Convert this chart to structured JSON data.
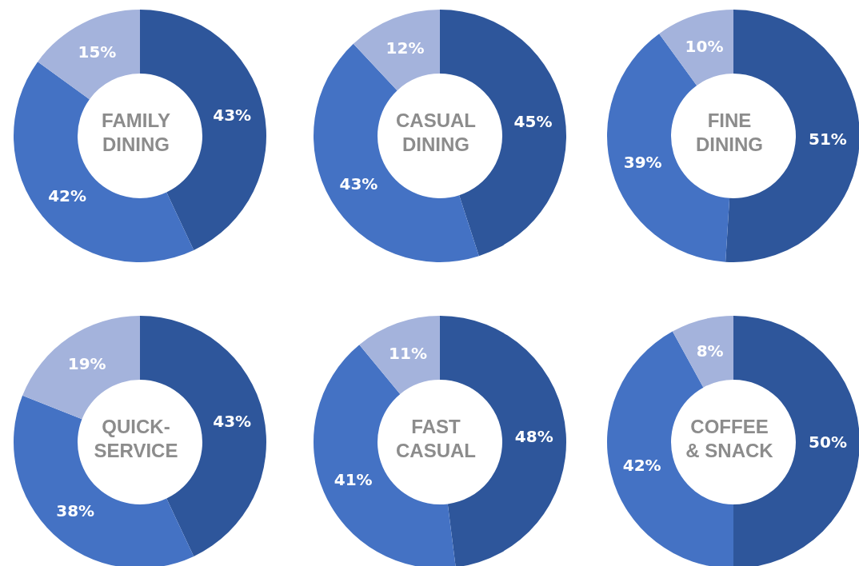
{
  "chart_data": [
    {
      "type": "donut",
      "title": "FAMILY\nDINING",
      "categories": [
        null,
        null,
        null
      ],
      "values": [
        43,
        42,
        15
      ],
      "value_labels": [
        "43%",
        "42%",
        "15%"
      ],
      "colors": [
        "#2e569b",
        "#4472c4",
        "#a4b3dc"
      ]
    },
    {
      "type": "donut",
      "title": "CASUAL\nDINING",
      "categories": [
        null,
        null,
        null
      ],
      "values": [
        45,
        43,
        12
      ],
      "value_labels": [
        "45%",
        "43%",
        "12%"
      ],
      "colors": [
        "#2e569b",
        "#4472c4",
        "#a4b3dc"
      ]
    },
    {
      "type": "donut",
      "title": "FINE\nDINING",
      "categories": [
        null,
        null,
        null
      ],
      "values": [
        51,
        39,
        10
      ],
      "value_labels": [
        "51%",
        "39%",
        "10%"
      ],
      "colors": [
        "#2e569b",
        "#4472c4",
        "#a4b3dc"
      ]
    },
    {
      "type": "donut",
      "title": "QUICK-\nSERVICE",
      "categories": [
        null,
        null,
        null
      ],
      "values": [
        43,
        38,
        19
      ],
      "value_labels": [
        "43%",
        "38%",
        "19%"
      ],
      "colors": [
        "#2e569b",
        "#4472c4",
        "#a4b3dc"
      ]
    },
    {
      "type": "donut",
      "title": "FAST\nCASUAL",
      "categories": [
        null,
        null,
        null
      ],
      "values": [
        48,
        41,
        11
      ],
      "value_labels": [
        "48%",
        "41%",
        "11%"
      ],
      "colors": [
        "#2e569b",
        "#4472c4",
        "#a4b3dc"
      ]
    },
    {
      "type": "donut",
      "title": "COFFEE\n& SNACK",
      "categories": [
        null,
        null,
        null
      ],
      "values": [
        50,
        42,
        8
      ],
      "value_labels": [
        "50%",
        "42%",
        "8%"
      ],
      "colors": [
        "#2e569b",
        "#4472c4",
        "#a4b3dc"
      ]
    }
  ]
}
